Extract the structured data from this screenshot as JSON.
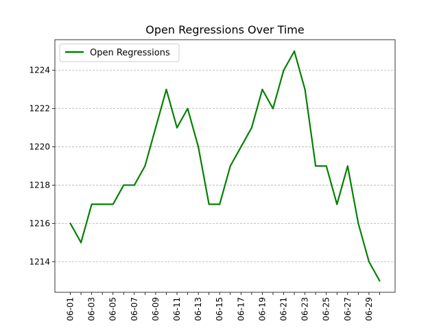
{
  "chart_data": {
    "type": "line",
    "title": "Open Regressions Over Time",
    "xlabel": "",
    "ylabel": "",
    "x": [
      "06-01",
      "06-02",
      "06-03",
      "06-04",
      "06-05",
      "06-06",
      "06-07",
      "06-08",
      "06-09",
      "06-10",
      "06-11",
      "06-12",
      "06-13",
      "06-14",
      "06-15",
      "06-16",
      "06-17",
      "06-18",
      "06-19",
      "06-20",
      "06-21",
      "06-22",
      "06-23",
      "06-24",
      "06-25",
      "06-26",
      "06-27",
      "06-28",
      "06-29",
      "06-30"
    ],
    "x_tick_labels": [
      "06-01",
      "06-03",
      "06-05",
      "06-07",
      "06-09",
      "06-11",
      "06-13",
      "06-15",
      "06-17",
      "06-19",
      "06-21",
      "06-23",
      "06-25",
      "06-27",
      "06-29"
    ],
    "series": [
      {
        "name": "Open Regressions",
        "color": "#008000",
        "values": [
          1216,
          1215,
          1217,
          1217,
          1217,
          1218,
          1218,
          1219,
          1221,
          1223,
          1221,
          1222,
          1220,
          1217,
          1217,
          1219,
          1220,
          1221,
          1223,
          1222,
          1224,
          1225,
          1223,
          1219,
          1219,
          1217,
          1219,
          1216,
          1214,
          1213
        ]
      }
    ],
    "ylim": [
      1212.4,
      1225.6
    ],
    "y_ticks": [
      1214,
      1216,
      1218,
      1220,
      1222,
      1224
    ],
    "grid": {
      "y": true,
      "x": false,
      "style": "dashed",
      "color": "#b0b0b0"
    },
    "legend": {
      "position": "top-left"
    }
  }
}
